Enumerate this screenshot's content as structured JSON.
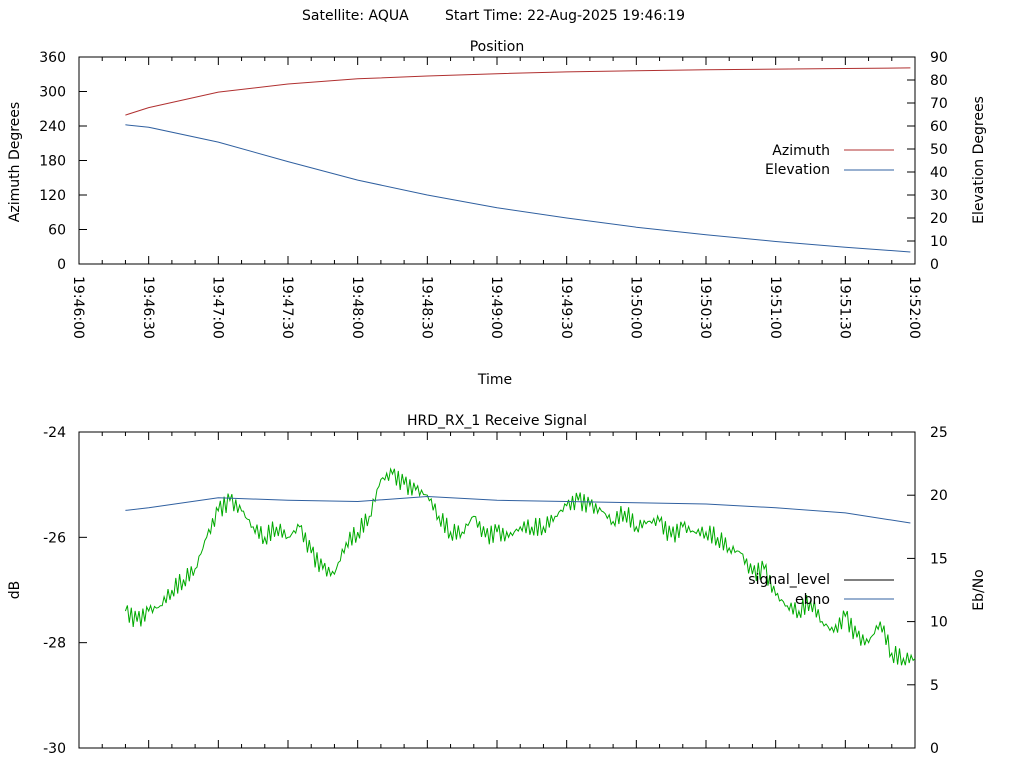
{
  "header": {
    "satellite": "Satellite: AQUA",
    "start_time": "Start Time: 22-Aug-2025 19:46:19"
  },
  "chart_data": [
    {
      "type": "line",
      "title": "Position",
      "xlabel": "Time",
      "ylabel": "Azimuth Degrees",
      "y2label": "Elevation Degrees",
      "x_ticks": [
        "19:46:00",
        "19:46:30",
        "19:47:00",
        "19:47:30",
        "19:48:00",
        "19:48:30",
        "19:49:00",
        "19:49:30",
        "19:50:00",
        "19:50:30",
        "19:51:00",
        "19:51:30",
        "19:52:00"
      ],
      "xlim": [
        "19:46:00",
        "19:52:00"
      ],
      "ylim": [
        0,
        360
      ],
      "y_ticks": [
        0,
        60,
        120,
        180,
        240,
        300,
        360
      ],
      "y2lim": [
        0,
        90
      ],
      "y2_ticks": [
        0,
        10,
        20,
        30,
        40,
        50,
        60,
        70,
        80,
        90
      ],
      "legend_position": "right",
      "series": [
        {
          "name": "Azimuth",
          "axis": "left",
          "color": "#b03030",
          "x": [
            "19:46:20",
            "19:46:30",
            "19:47:00",
            "19:47:30",
            "19:48:00",
            "19:48:30",
            "19:49:00",
            "19:49:30",
            "19:50:00",
            "19:50:30",
            "19:51:00",
            "19:51:30",
            "19:51:58"
          ],
          "values": [
            259,
            272,
            299,
            313,
            322,
            327,
            331,
            334,
            336,
            338,
            339,
            340,
            341
          ]
        },
        {
          "name": "Elevation",
          "axis": "right",
          "color": "#3060a0",
          "x": [
            "19:46:20",
            "19:46:30",
            "19:47:00",
            "19:47:30",
            "19:48:00",
            "19:48:30",
            "19:49:00",
            "19:49:30",
            "19:50:00",
            "19:50:30",
            "19:51:00",
            "19:51:30",
            "19:51:58"
          ],
          "values": [
            60.5,
            59.5,
            53.0,
            44.5,
            36.5,
            30.0,
            24.5,
            20.0,
            16.0,
            12.7,
            9.8,
            7.3,
            5.2
          ]
        }
      ]
    },
    {
      "type": "line",
      "title": "HRD_RX_1 Receive Signal",
      "xlabel": "",
      "ylabel": "dB",
      "y2label": "Eb/No",
      "xlim": [
        "19:46:00",
        "19:52:00"
      ],
      "ylim": [
        -30,
        -24
      ],
      "y_ticks": [
        -30,
        -28,
        -26,
        -24
      ],
      "y2lim": [
        0,
        25
      ],
      "y2_ticks": [
        0,
        5,
        10,
        15,
        20,
        25
      ],
      "legend_position": "right",
      "series": [
        {
          "name": "signal_level",
          "axis": "left",
          "color": "#000000",
          "trace_color": "#00aa00",
          "x": [
            "19:46:20",
            "19:46:25",
            "19:46:30",
            "19:46:35",
            "19:46:40",
            "19:46:45",
            "19:46:50",
            "19:46:55",
            "19:47:00",
            "19:47:05",
            "19:47:10",
            "19:47:15",
            "19:47:20",
            "19:47:25",
            "19:47:30",
            "19:47:35",
            "19:47:40",
            "19:47:45",
            "19:47:50",
            "19:47:55",
            "19:48:00",
            "19:48:05",
            "19:48:10",
            "19:48:15",
            "19:48:20",
            "19:48:25",
            "19:48:30",
            "19:48:35",
            "19:48:40",
            "19:48:45",
            "19:48:50",
            "19:48:55",
            "19:49:00",
            "19:49:05",
            "19:49:10",
            "19:49:15",
            "19:49:20",
            "19:49:25",
            "19:49:30",
            "19:49:35",
            "19:49:40",
            "19:49:45",
            "19:49:50",
            "19:49:55",
            "19:50:00",
            "19:50:05",
            "19:50:10",
            "19:50:15",
            "19:50:20",
            "19:50:25",
            "19:50:30",
            "19:50:35",
            "19:50:40",
            "19:50:45",
            "19:50:50",
            "19:50:55",
            "19:51:00",
            "19:51:05",
            "19:51:10",
            "19:51:15",
            "19:51:20",
            "19:51:25",
            "19:51:30",
            "19:51:35",
            "19:51:40",
            "19:51:45",
            "19:51:50",
            "19:51:55",
            "19:52:00"
          ],
          "values": [
            -27.4,
            -27.6,
            -27.4,
            -27.3,
            -27.0,
            -26.8,
            -26.6,
            -26.0,
            -25.5,
            -25.3,
            -25.5,
            -25.8,
            -26.0,
            -25.8,
            -26.0,
            -25.8,
            -26.3,
            -26.6,
            -26.7,
            -26.1,
            -25.9,
            -25.6,
            -24.9,
            -24.8,
            -25.0,
            -25.1,
            -25.2,
            -25.6,
            -25.9,
            -25.9,
            -25.6,
            -26.0,
            -25.9,
            -26.0,
            -25.8,
            -25.8,
            -25.8,
            -25.6,
            -25.4,
            -25.3,
            -25.4,
            -25.5,
            -25.7,
            -25.5,
            -25.8,
            -25.7,
            -25.7,
            -26.0,
            -25.8,
            -25.9,
            -25.9,
            -26.0,
            -26.2,
            -26.3,
            -26.7,
            -26.6,
            -27.1,
            -27.3,
            -27.4,
            -27.2,
            -27.6,
            -27.8,
            -27.5,
            -27.9,
            -28.0,
            -27.6,
            -28.2,
            -28.3,
            -28.3
          ]
        },
        {
          "name": "ebno",
          "axis": "right",
          "color": "#3060a0",
          "x": [
            "19:46:20",
            "19:46:30",
            "19:47:00",
            "19:47:30",
            "19:48:00",
            "19:48:30",
            "19:49:00",
            "19:49:30",
            "19:50:00",
            "19:50:30",
            "19:51:00",
            "19:51:30",
            "19:51:58"
          ],
          "values": [
            18.8,
            19.0,
            19.8,
            19.6,
            19.5,
            19.9,
            19.6,
            19.5,
            19.4,
            19.3,
            19.0,
            18.6,
            17.8
          ]
        }
      ]
    }
  ]
}
